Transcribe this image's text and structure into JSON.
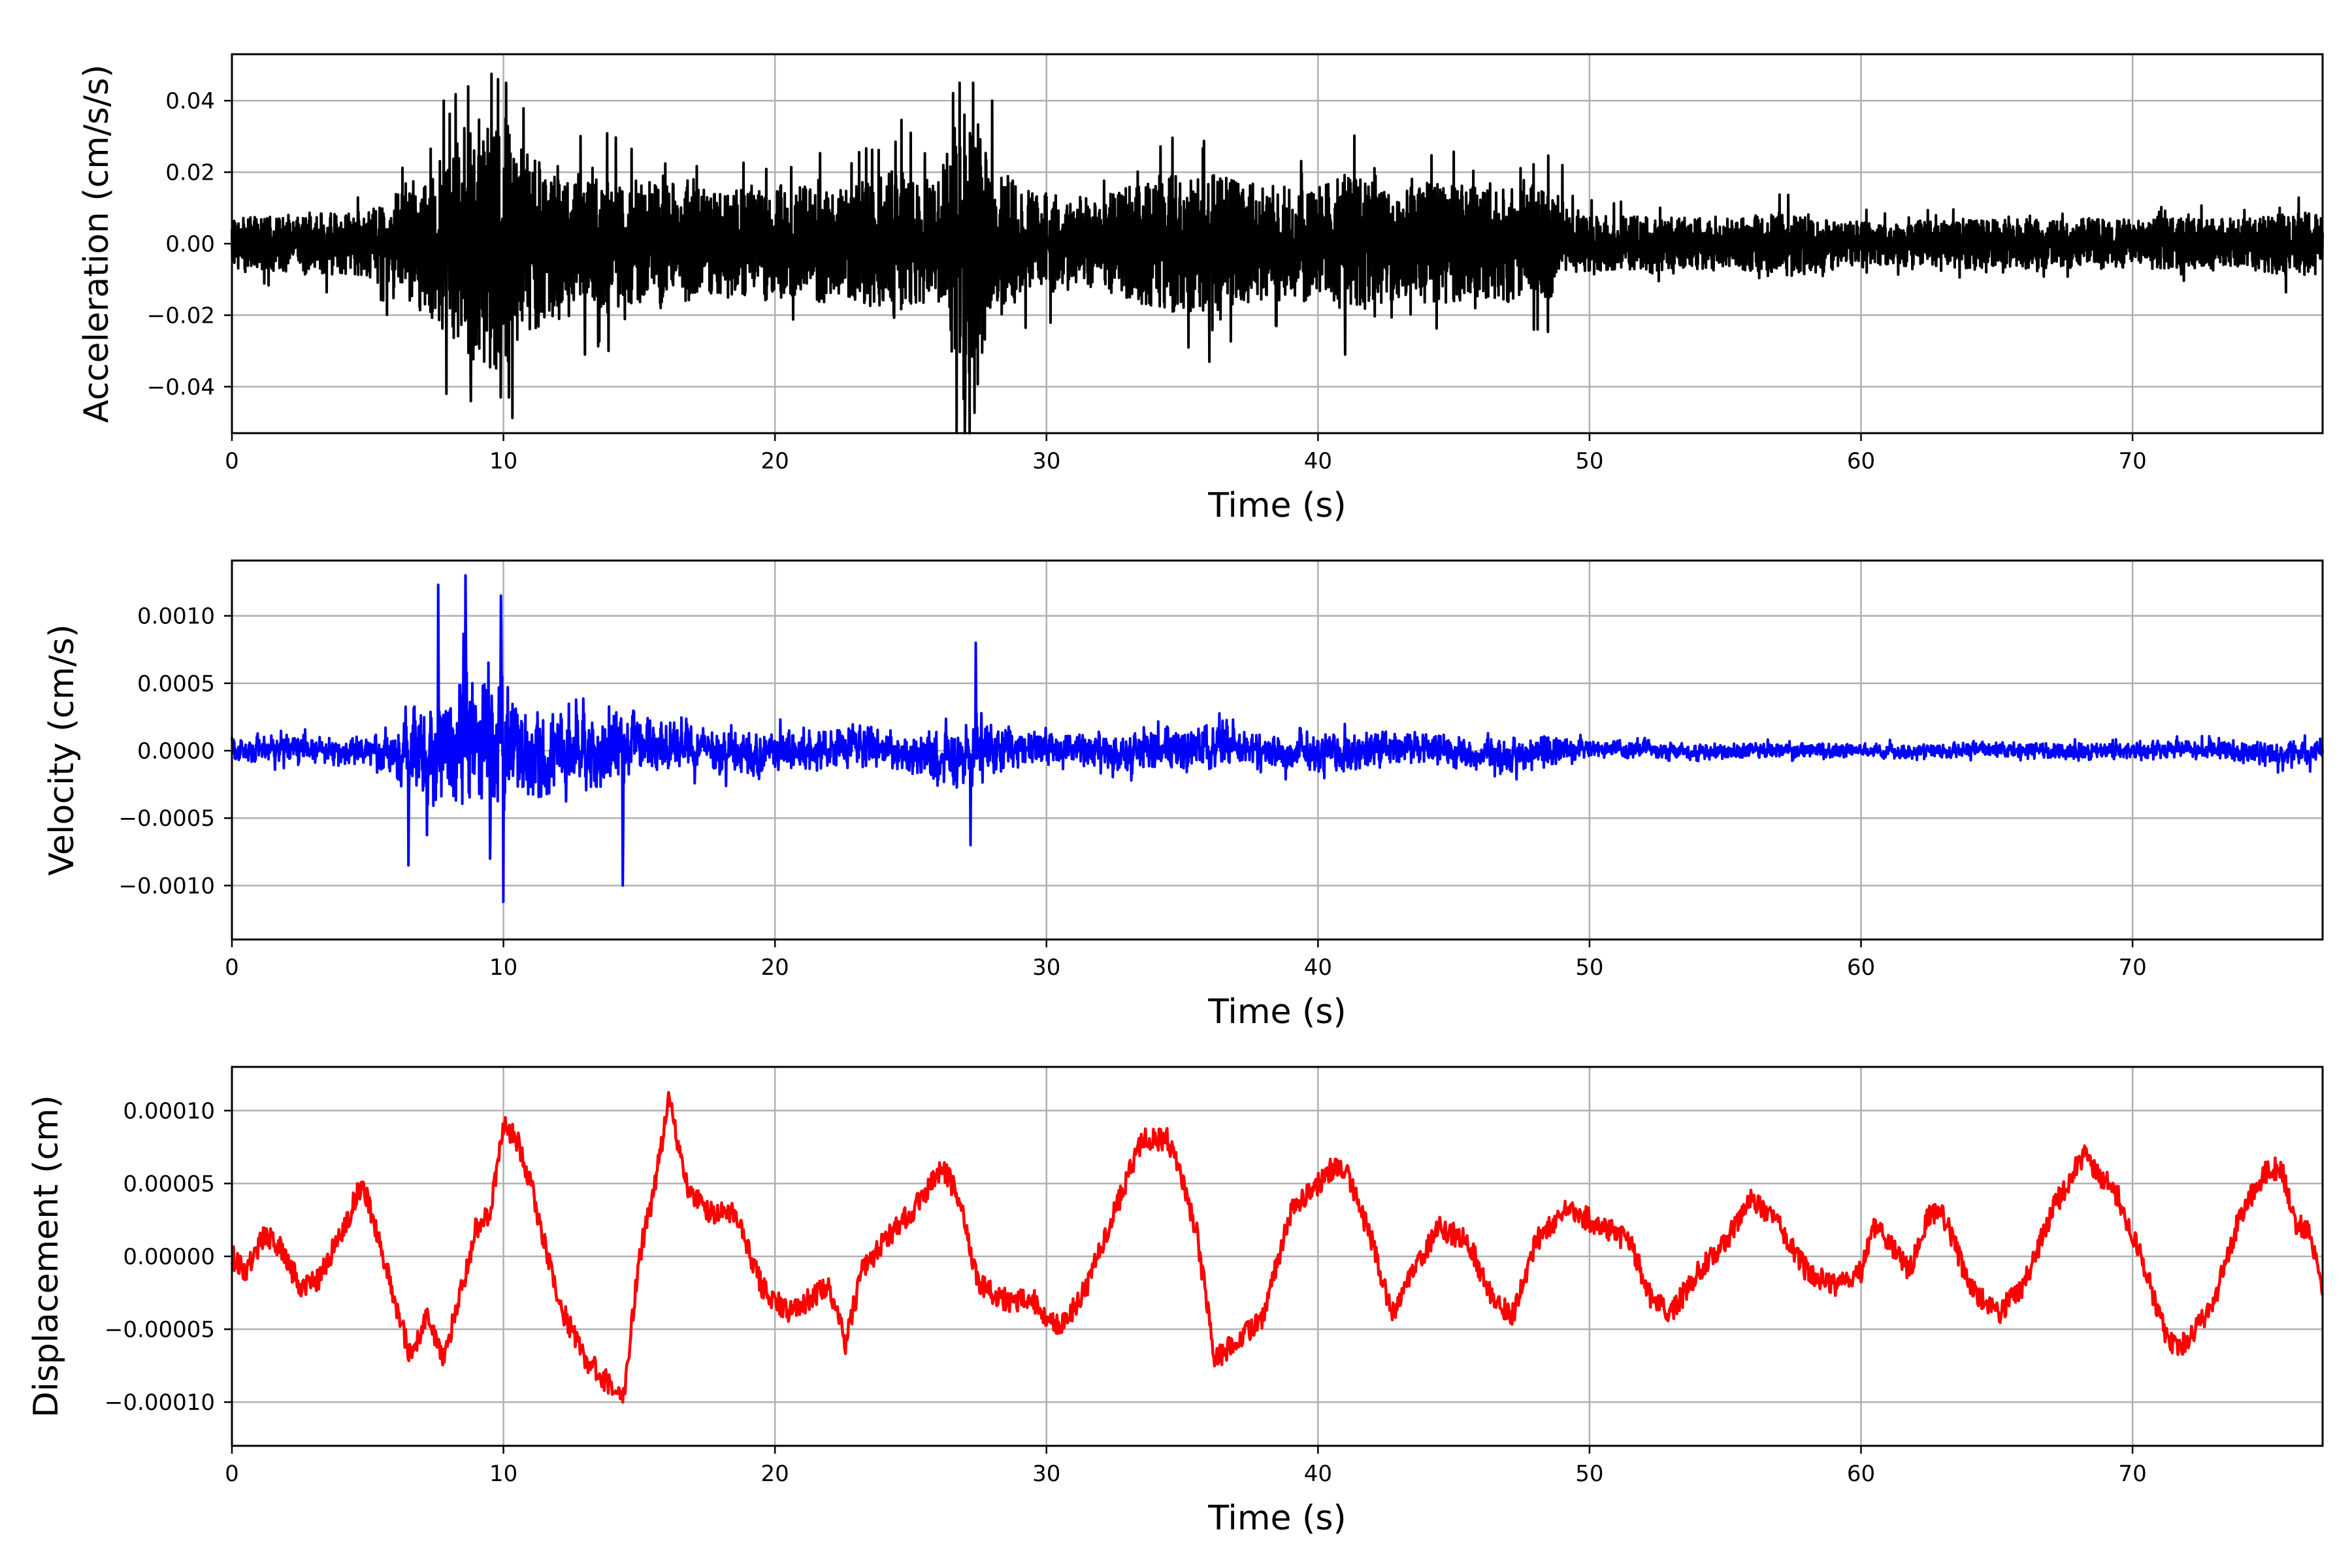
{
  "chart_data": [
    {
      "type": "line",
      "xlabel": "Time (s)",
      "ylabel": "Acceleration (cm/s/s)",
      "xlim": [
        0,
        77
      ],
      "ylim": [
        -0.053,
        0.053
      ],
      "xticks": [
        0,
        10,
        20,
        30,
        40,
        50,
        60,
        70
      ],
      "xtick_labels": [
        "0",
        "10",
        "20",
        "30",
        "40",
        "50",
        "60",
        "70"
      ],
      "yticks": [
        -0.04,
        -0.02,
        0.0,
        0.02,
        0.04
      ],
      "ytick_labels": [
        "−0.04",
        "−0.02",
        "0.00",
        "0.02",
        "0.04"
      ],
      "grid": true,
      "color": "#000000",
      "signal_kind": "acceleration",
      "series": [
        {
          "envelope_t": [
            0,
            2,
            5,
            6,
            7.5,
            8.5,
            9,
            9.5,
            10,
            10.5,
            11,
            12,
            13,
            14,
            15,
            17,
            19,
            20,
            22,
            23,
            24,
            24.5,
            25,
            26,
            26.5,
            27,
            27.5,
            28,
            29,
            30,
            32,
            33,
            34,
            35,
            36,
            38,
            40,
            41,
            43,
            44,
            46,
            48,
            48.5,
            49,
            50,
            55,
            57.5,
            60,
            65,
            70,
            72,
            74,
            76,
            77
          ],
          "envelope_amp": [
            0.007,
            0.008,
            0.009,
            0.014,
            0.022,
            0.03,
            0.036,
            0.036,
            0.036,
            0.034,
            0.025,
            0.022,
            0.019,
            0.02,
            0.018,
            0.016,
            0.015,
            0.017,
            0.016,
            0.017,
            0.02,
            0.023,
            0.019,
            0.017,
            0.03,
            0.04,
            0.034,
            0.022,
            0.017,
            0.014,
            0.013,
            0.016,
            0.019,
            0.019,
            0.02,
            0.016,
            0.017,
            0.02,
            0.015,
            0.017,
            0.016,
            0.016,
            0.016,
            0.009,
            0.008,
            0.007,
            0.009,
            0.006,
            0.007,
            0.007,
            0.007,
            0.007,
            0.009,
            0.009
          ],
          "peaks": [
            [
              7.8,
              0.04
            ],
            [
              7.9,
              -0.042
            ],
            [
              8.7,
              0.044
            ],
            [
              8.8,
              -0.044
            ],
            [
              9.8,
              0.046
            ],
            [
              9.9,
              -0.043
            ],
            [
              10.1,
              0.045
            ],
            [
              10.2,
              -0.043
            ],
            [
              13.0,
              -0.031
            ],
            [
              26.8,
              0.045
            ],
            [
              27.0,
              -0.048
            ],
            [
              27.3,
              0.045
            ],
            [
              28.0,
              0.04
            ],
            [
              41.0,
              -0.031
            ],
            [
              36.0,
              -0.033
            ],
            [
              25.0,
              0.031
            ],
            [
              49.0,
              0.022
            ]
          ]
        }
      ]
    },
    {
      "type": "line",
      "xlabel": "Time (s)",
      "ylabel": "Velocity (cm/s)",
      "xlim": [
        0,
        77
      ],
      "ylim": [
        -0.0014,
        0.00141
      ],
      "xticks": [
        0,
        10,
        20,
        30,
        40,
        50,
        60,
        70
      ],
      "xtick_labels": [
        "0",
        "10",
        "20",
        "30",
        "40",
        "50",
        "60",
        "70"
      ],
      "yticks": [
        -0.001,
        -0.0005,
        0.0,
        0.0005,
        0.001
      ],
      "ytick_labels": [
        "−0.0010",
        "−0.0005",
        "0.0000",
        "0.0005",
        "0.0010"
      ],
      "grid": true,
      "color": "#0000ff",
      "signal_kind": "velocity",
      "series": [
        {
          "envelope_t": [
            0,
            3,
            5,
            6.5,
            7.5,
            8.5,
            9.5,
            10,
            11,
            12,
            13,
            14,
            15,
            17,
            19,
            21,
            23,
            25,
            26.5,
            27.5,
            29,
            31,
            33,
            34,
            36,
            38,
            40,
            41,
            44,
            47,
            48.5,
            50,
            55,
            60,
            65,
            68,
            70,
            72,
            74,
            76,
            77
          ],
          "envelope_amp": [
            0.00018,
            0.00018,
            0.0002,
            0.0005,
            0.0008,
            0.0009,
            0.0009,
            0.0009,
            0.0006,
            0.0006,
            0.0005,
            0.0005,
            0.0004,
            0.0003,
            0.0003,
            0.00028,
            0.0003,
            0.0003,
            0.0005,
            0.0004,
            0.00025,
            0.00022,
            0.00025,
            0.00032,
            0.0003,
            0.00022,
            0.00024,
            0.00026,
            0.00023,
            0.00024,
            0.0002,
            0.00013,
            0.00011,
            0.0001,
            0.0001,
            0.00012,
            0.00012,
            0.00012,
            0.00014,
            0.00018,
            0.00018
          ],
          "peaks": [
            [
              7.6,
              0.00123
            ],
            [
              8.6,
              0.0013
            ],
            [
              9.9,
              0.00115
            ],
            [
              10.0,
              -0.00112
            ],
            [
              6.5,
              -0.00085
            ],
            [
              14.4,
              -0.001
            ],
            [
              9.5,
              -0.0008
            ],
            [
              27.4,
              0.0008
            ],
            [
              27.2,
              -0.0007
            ]
          ]
        }
      ]
    },
    {
      "type": "line",
      "xlabel": "Time (s)",
      "ylabel": "Displacement (cm)",
      "xlim": [
        0,
        77
      ],
      "ylim": [
        -0.00013,
        0.00013
      ],
      "xticks": [
        0,
        10,
        20,
        30,
        40,
        50,
        60,
        70
      ],
      "xtick_labels": [
        "0",
        "10",
        "20",
        "30",
        "40",
        "50",
        "60",
        "70"
      ],
      "yticks": [
        -0.0001,
        -5e-05,
        0.0,
        5e-05,
        0.0001
      ],
      "ytick_labels": [
        "−0.00010",
        "−0.00005",
        "0.00000",
        "0.00005",
        "0.00010"
      ],
      "grid": true,
      "color": "#ff0000",
      "signal_kind": "displacement",
      "series": [
        {
          "x": [
            0,
            0.5,
            1.2,
            1.8,
            2.5,
            3.2,
            4.0,
            4.8,
            5.3,
            6.0,
            6.6,
            7.2,
            7.8,
            8.5,
            9.0,
            9.5,
            10.0,
            10.5,
            11.0,
            11.5,
            12.0,
            12.5,
            13.0,
            13.5,
            14.0,
            14.4,
            15.0,
            15.5,
            16.1,
            16.7,
            17.5,
            18.5,
            19.5,
            20.5,
            21.2,
            22.0,
            22.6,
            23.2,
            24.0,
            25.0,
            26.2,
            26.8,
            27.5,
            28.5,
            29.5,
            30.5,
            31.5,
            32.5,
            33.5,
            34.5,
            35.5,
            36.2,
            37.0,
            38.0,
            39.0,
            40.0,
            40.5,
            41.0,
            42.0,
            42.7,
            43.5,
            44.5,
            45.5,
            46.5,
            47.2,
            48.0,
            49.0,
            49.5,
            50.5,
            51.5,
            52.3,
            53.0,
            54.0,
            55.0,
            56.0,
            57.0,
            58.0,
            59.0,
            60.0,
            60.5,
            61.0,
            61.8,
            62.5,
            63.0,
            64.0,
            65.0,
            66.0,
            67.0,
            68.2,
            69.5,
            70.5,
            71.3,
            72.0,
            73.0,
            74.0,
            75.0,
            75.5,
            76.0,
            76.5,
            77.0
          ],
          "values": [
            0.0,
            -1e-05,
            1.5e-05,
            5e-06,
            -2e-05,
            -1.5e-05,
            1.5e-05,
            5e-05,
            2e-05,
            -3e-05,
            -7e-05,
            -4e-05,
            -7e-05,
            -2e-05,
            2e-05,
            3e-05,
            9e-05,
            8e-05,
            5e-05,
            1e-05,
            -3e-05,
            -5e-05,
            -7e-05,
            -8e-05,
            -9e-05,
            -0.0001,
            0.0,
            4e-05,
            0.00011,
            5e-05,
            3e-05,
            3e-05,
            -2e-05,
            -4e-05,
            -3e-05,
            -2e-05,
            -6e-05,
            -1e-05,
            1e-05,
            3e-05,
            6e-05,
            4e-05,
            -2e-05,
            -3e-05,
            -3e-05,
            -5e-05,
            -2e-05,
            3e-05,
            8e-05,
            8e-05,
            2e-05,
            -7e-05,
            -6e-05,
            -4e-05,
            3e-05,
            5e-05,
            6e-05,
            6e-05,
            1e-05,
            -4e-05,
            -1e-05,
            2e-05,
            1e-05,
            -3e-05,
            -4e-05,
            1e-05,
            3e-05,
            3e-05,
            2e-05,
            1e-05,
            -3e-05,
            -4e-05,
            -1e-05,
            1e-05,
            4e-05,
            2e-05,
            -1e-05,
            -2e-05,
            -1e-05,
            2e-05,
            1e-05,
            -1e-05,
            3e-05,
            3e-05,
            -2e-05,
            -4e-05,
            -2e-05,
            3e-05,
            7e-05,
            4e-05,
            -1e-05,
            -6e-05,
            -6e-05,
            -3e-05,
            3e-05,
            6e-05,
            6e-05,
            2e-05,
            2e-05,
            -2e-05
          ],
          "noise_amp": 8e-06
        }
      ]
    }
  ]
}
